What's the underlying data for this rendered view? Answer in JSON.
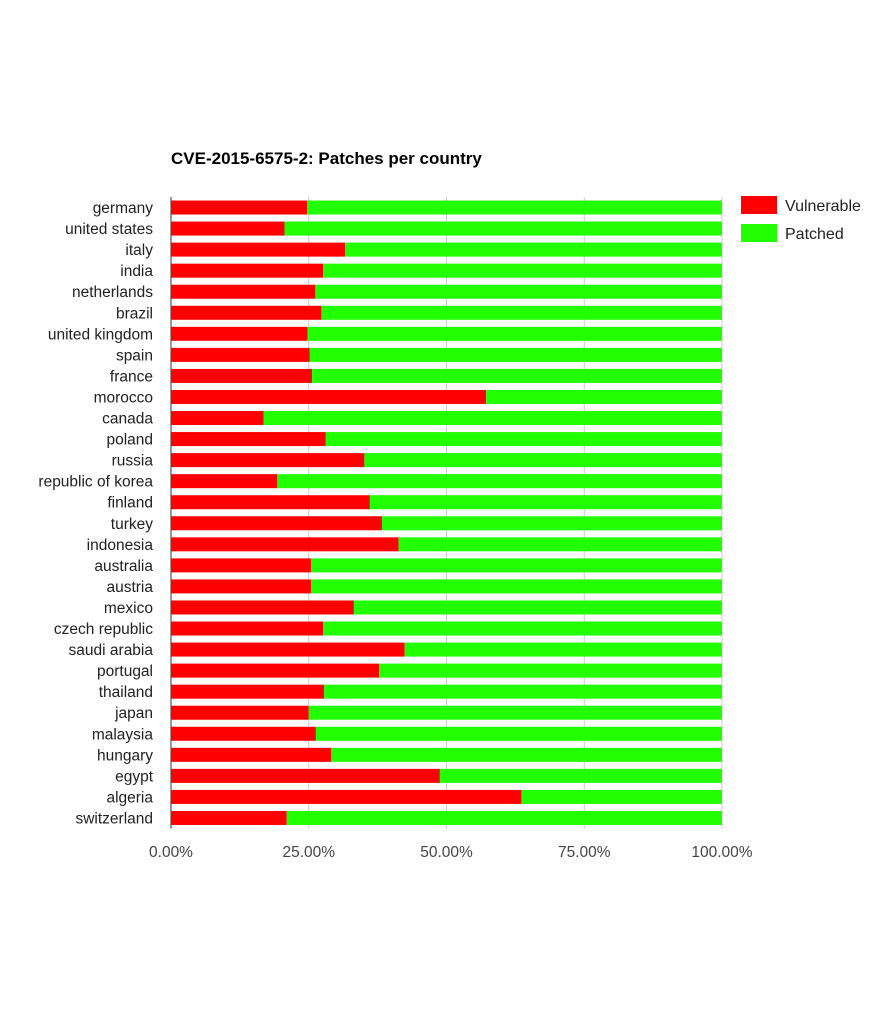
{
  "chart_data": {
    "type": "bar",
    "orientation": "horizontal",
    "stacked": "percent",
    "title": "CVE-2015-6575-2: Patches per country",
    "categories": [
      "germany",
      "united states",
      "italy",
      "india",
      "netherlands",
      "brazil",
      "united kingdom",
      "spain",
      "france",
      "morocco",
      "canada",
      "poland",
      "russia",
      "republic of korea",
      "finland",
      "turkey",
      "indonesia",
      "australia",
      "austria",
      "mexico",
      "czech republic",
      "saudi arabia",
      "portugal",
      "thailand",
      "japan",
      "malaysia",
      "hungary",
      "egypt",
      "algeria",
      "switzerland"
    ],
    "series": [
      {
        "name": "Vulnerable",
        "color": "#ff0000",
        "values": [
          24.7,
          20.6,
          31.6,
          27.6,
          26.2,
          27.3,
          24.8,
          25.2,
          25.6,
          57.2,
          16.8,
          28.1,
          35.1,
          19.3,
          36.1,
          38.3,
          41.3,
          25.4,
          25.4,
          33.2,
          27.6,
          42.4,
          37.8,
          27.8,
          25.0,
          26.3,
          29.1,
          48.8,
          63.6,
          21.0
        ]
      },
      {
        "name": "Patched",
        "color": "#22ff00",
        "values": [
          75.3,
          79.4,
          68.4,
          72.4,
          73.8,
          72.7,
          75.2,
          74.8,
          74.4,
          42.8,
          83.2,
          71.9,
          64.9,
          80.7,
          63.9,
          61.7,
          58.7,
          74.6,
          74.6,
          66.8,
          72.4,
          57.6,
          62.2,
          72.2,
          75.0,
          73.7,
          70.9,
          51.2,
          36.4,
          79.0
        ]
      }
    ],
    "xlim": [
      0,
      100
    ],
    "x_ticks": [
      "0.00%",
      "25.00%",
      "50.00%",
      "75.00%",
      "100.00%"
    ],
    "x_tick_values": [
      0,
      25,
      50,
      75,
      100
    ],
    "grid": true,
    "legend_position": "top-right"
  }
}
